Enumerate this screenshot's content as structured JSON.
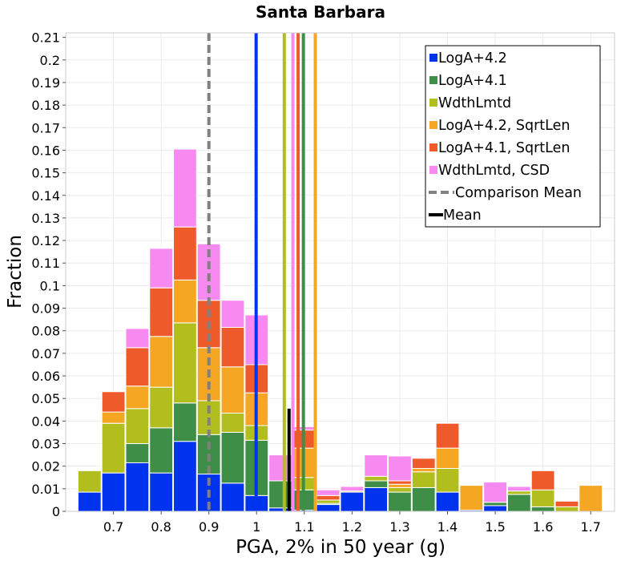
{
  "chart_data": {
    "type": "bar",
    "stacked": true,
    "title": "Santa Barbara",
    "xlabel": "PGA, 2% in 50 year (g)",
    "ylabel": "Fraction",
    "xlim": [
      0.6,
      1.75
    ],
    "ylim": [
      0,
      0.212
    ],
    "bin_width": 0.05,
    "x_ticks": [
      "0.7",
      "0.8",
      "0.9",
      "1",
      "1.1",
      "1.2",
      "1.3",
      "1.4",
      "1.5",
      "1.6",
      "1.7"
    ],
    "y_ticks": [
      "0",
      "0.01",
      "0.02",
      "0.03",
      "0.04",
      "0.05",
      "0.06",
      "0.07",
      "0.08",
      "0.09",
      "0.1",
      "0.11",
      "0.12",
      "0.13",
      "0.14",
      "0.15",
      "0.16",
      "0.17",
      "0.18",
      "0.19",
      "0.2",
      "0.21"
    ],
    "grid": true,
    "legend_position": "top-right",
    "x": [
      0.65,
      0.7,
      0.75,
      0.8,
      0.85,
      0.9,
      0.95,
      1.0,
      1.05,
      1.1,
      1.15,
      1.2,
      1.25,
      1.3,
      1.35,
      1.4,
      1.45,
      1.5,
      1.55,
      1.6,
      1.65,
      1.7
    ],
    "series": [
      {
        "name": "LogA+4.2",
        "color": "#0033ee",
        "values": [
          0.0085,
          0.017,
          0.0215,
          0.017,
          0.031,
          0.0165,
          0.0125,
          0.007,
          0.0015,
          0.0005,
          0.003,
          0.0085,
          0.0105,
          0,
          0,
          0.0085,
          0.0005,
          0.0025,
          0,
          0,
          0,
          0
        ]
      },
      {
        "name": "LogA+4.1",
        "color": "#3e8e47",
        "values": [
          0,
          0,
          0.0085,
          0.02,
          0.017,
          0.0175,
          0.0225,
          0.0245,
          0.012,
          0.009,
          0.0005,
          0,
          0.003,
          0.0085,
          0.0105,
          0,
          0,
          0.0015,
          0.0075,
          0.002,
          0,
          0
        ]
      },
      {
        "name": "WdthLmtd",
        "color": "#b2bd1e",
        "values": [
          0.0095,
          0.022,
          0.0155,
          0.018,
          0.0355,
          0.015,
          0.0085,
          0.0065,
          0,
          0.0055,
          0.0015,
          0.0005,
          0.002,
          0.002,
          0.007,
          0.0105,
          0,
          0,
          0.0015,
          0.0075,
          0.002,
          0
        ]
      },
      {
        "name": "LogA+4.2, SqrtLen",
        "color": "#f5a623",
        "values": [
          0,
          0.005,
          0.01,
          0.0225,
          0.019,
          0.0235,
          0.0205,
          0.0145,
          0,
          0.013,
          0,
          0,
          0,
          0.0015,
          0.0015,
          0.009,
          0.011,
          0,
          0,
          0,
          0,
          0.0115
        ]
      },
      {
        "name": "LogA+4.1, SqrtLen",
        "color": "#ef5a2b",
        "values": [
          0,
          0.009,
          0.017,
          0.0215,
          0.0235,
          0.021,
          0.0175,
          0.0125,
          0,
          0.008,
          0.002,
          0,
          0,
          0.0015,
          0.0045,
          0.011,
          0,
          0,
          0,
          0.0085,
          0.0025,
          0
        ]
      },
      {
        "name": "WdthLmtd, CSD",
        "color": "#f78af0",
        "values": [
          0,
          0,
          0.0085,
          0.0175,
          0.0345,
          0.025,
          0.012,
          0.022,
          0.0115,
          0.0015,
          0.0025,
          0.002,
          0.0095,
          0.011,
          0,
          0,
          0,
          0.009,
          0.002,
          0,
          0,
          0
        ]
      }
    ],
    "mean_lines": [
      {
        "series": "LogA+4.2",
        "x": 0.999,
        "color": "#0033ee"
      },
      {
        "series": "LogA+4.1",
        "x": 1.098,
        "color": "#3e8e47"
      },
      {
        "series": "WdthLmtd",
        "x": 1.058,
        "color": "#b2bd1e"
      },
      {
        "series": "LogA+4.2, SqrtLen",
        "x": 1.123,
        "color": "#f5a623"
      },
      {
        "series": "LogA+4.1, SqrtLen",
        "x": 1.087,
        "color": "#ef5a2b"
      },
      {
        "series": "WdthLmtd, CSD",
        "x": 1.076,
        "color": "#f78af0"
      }
    ],
    "comparison_mean": {
      "x": 0.9,
      "color": "#808080",
      "style": "dashed",
      "label": "Comparison Mean"
    },
    "overall_mean": {
      "x": 1.068,
      "color": "#000000",
      "label": "Mean"
    }
  }
}
